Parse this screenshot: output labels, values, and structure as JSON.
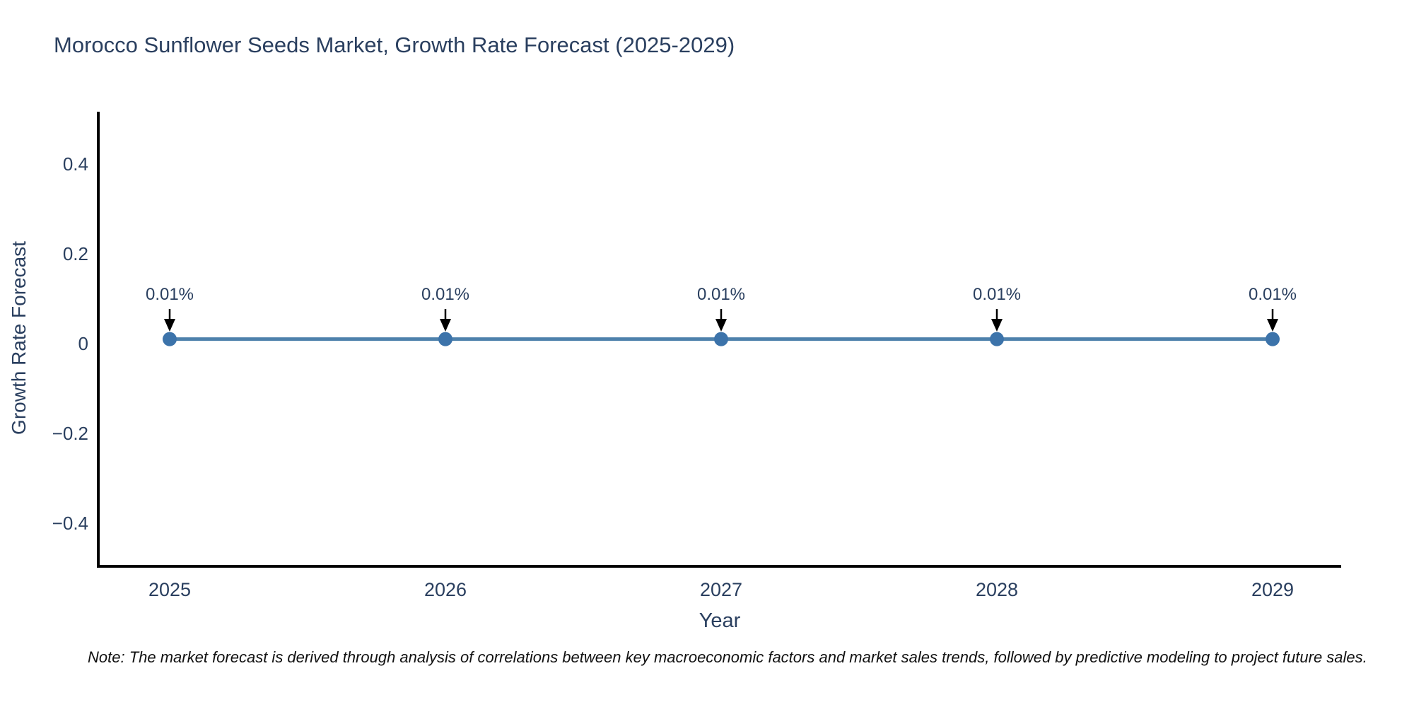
{
  "title": "Morocco Sunflower Seeds Market, Growth Rate Forecast (2025-2029)",
  "note": "Note: The market forecast is derived through analysis of correlations between key macroeconomic factors and market sales trends, followed by predictive modeling to project future sales.",
  "chart_data": {
    "type": "line",
    "title": "Morocco Sunflower Seeds Market, Growth Rate Forecast (2025-2029)",
    "x": [
      2025,
      2026,
      2027,
      2028,
      2029
    ],
    "xtick_labels": [
      "2025",
      "2026",
      "2027",
      "2028",
      "2029"
    ],
    "series": [
      {
        "name": "Growth Rate Forecast",
        "values": [
          0.01,
          0.01,
          0.01,
          0.01,
          0.01
        ]
      }
    ],
    "point_labels": [
      "0.01%",
      "0.01%",
      "0.01%",
      "0.01%",
      "0.01%"
    ],
    "xlabel": "Year",
    "ylabel": "Growth Rate Forecast",
    "ylim": [
      -0.49,
      0.51
    ],
    "yticks": [
      0.4,
      0.2,
      0,
      -0.2,
      -0.4
    ],
    "ytick_labels": [
      "0.4",
      "0.2",
      "0",
      "−0.2",
      "−0.4"
    ],
    "grid": false,
    "legend": "none",
    "annotation_arrows": true,
    "colors": {
      "line": "#4e81ac",
      "marker": "#3c73aa",
      "arrow": "#000000",
      "text": "#2a3f5f",
      "axis": "#000000",
      "note_text": "#111111",
      "background": "#ffffff"
    }
  }
}
